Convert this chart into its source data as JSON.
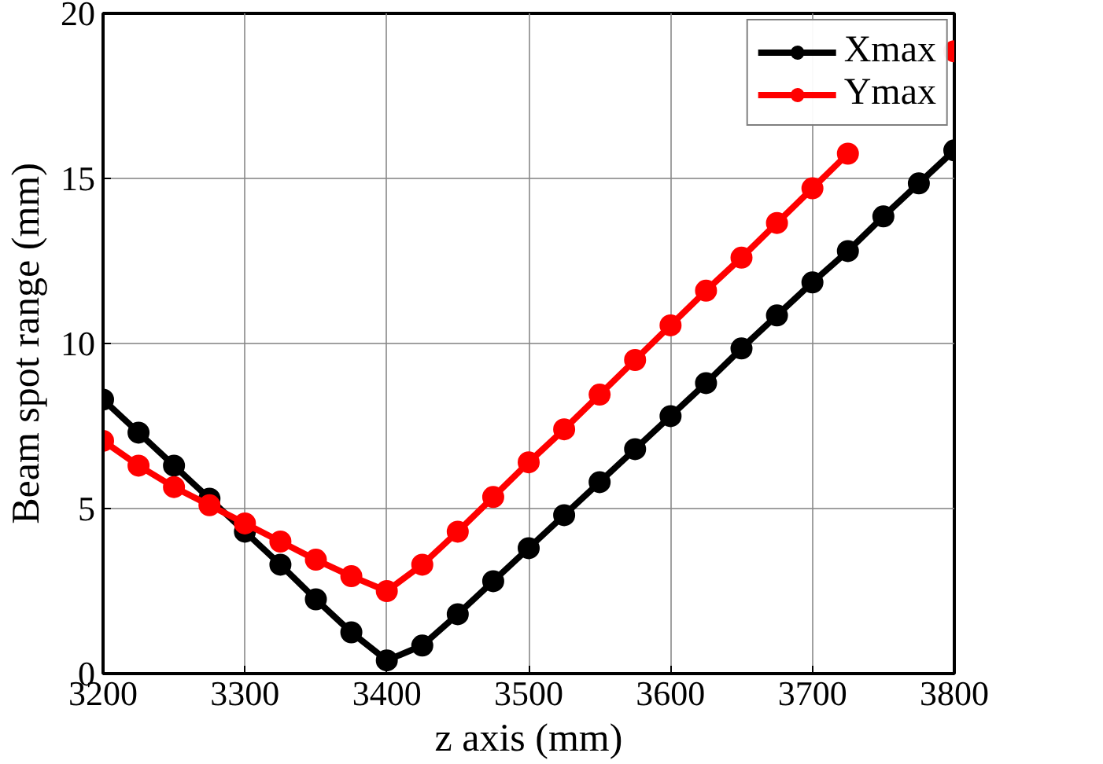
{
  "chart_data": {
    "type": "line",
    "xlabel": "z axis (mm)",
    "ylabel": "Beam spot range (mm)",
    "x": [
      3200,
      3225,
      3250,
      3275,
      3300,
      3325,
      3350,
      3375,
      3400,
      3425,
      3450,
      3475,
      3500,
      3525,
      3550,
      3575,
      3600,
      3625,
      3650,
      3675,
      3700,
      3725,
      3750,
      3775,
      3800
    ],
    "series": [
      {
        "name": "Xmax",
        "color": "#000000",
        "values": [
          8.3,
          7.3,
          6.3,
          5.3,
          4.3,
          3.3,
          2.25,
          1.25,
          0.4,
          0.85,
          1.8,
          2.8,
          3.8,
          4.8,
          5.8,
          6.8,
          7.8,
          8.8,
          9.85,
          10.85,
          11.85,
          12.8,
          13.85,
          14.85,
          15.85
        ]
      },
      {
        "name": "Ymax",
        "color": "#ff0000",
        "values": [
          7.05,
          6.3,
          5.65,
          5.1,
          4.55,
          4.0,
          3.45,
          2.95,
          2.5,
          3.3,
          4.3,
          5.35,
          6.4,
          7.4,
          8.45,
          9.5,
          10.55,
          11.6,
          12.6,
          13.65,
          14.7,
          15.75,
          null,
          null,
          18.85
        ]
      }
    ],
    "xlim": [
      3200,
      3800
    ],
    "xticks": [
      3200,
      3300,
      3400,
      3500,
      3600,
      3700,
      3800
    ],
    "ylim": [
      0,
      20
    ],
    "yticks": [
      0,
      5,
      10,
      15,
      20
    ],
    "grid": true,
    "legend": "top right",
    "marker": "circle",
    "line_style": "solid"
  }
}
